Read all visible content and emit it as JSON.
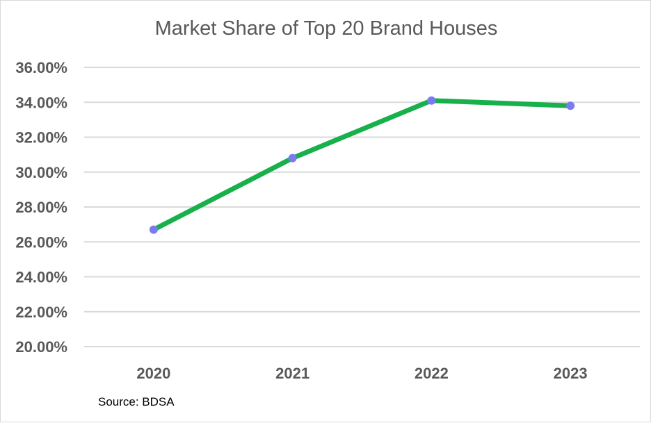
{
  "chart_data": {
    "type": "line",
    "title": "Market Share of Top 20 Brand Houses",
    "xlabel": "",
    "ylabel": "",
    "categories": [
      "2020",
      "2021",
      "2022",
      "2023"
    ],
    "series": [
      {
        "values": [
          26.7,
          30.8,
          34.1,
          33.8
        ],
        "line_color": "#17b04b",
        "marker_color": "#7b7bf0"
      }
    ],
    "ylim": [
      20,
      36
    ],
    "y_ticks": [
      20,
      22,
      24,
      26,
      28,
      30,
      32,
      34,
      36
    ],
    "y_tick_labels": [
      "20.00%",
      "22.00%",
      "24.00%",
      "26.00%",
      "28.00%",
      "30.00%",
      "32.00%",
      "34.00%",
      "36.00%"
    ],
    "grid": true,
    "legend": "none",
    "annotations": [
      "Source: BDSA"
    ]
  },
  "colors": {
    "grid": "#d9d9d9",
    "text": "#595959"
  }
}
